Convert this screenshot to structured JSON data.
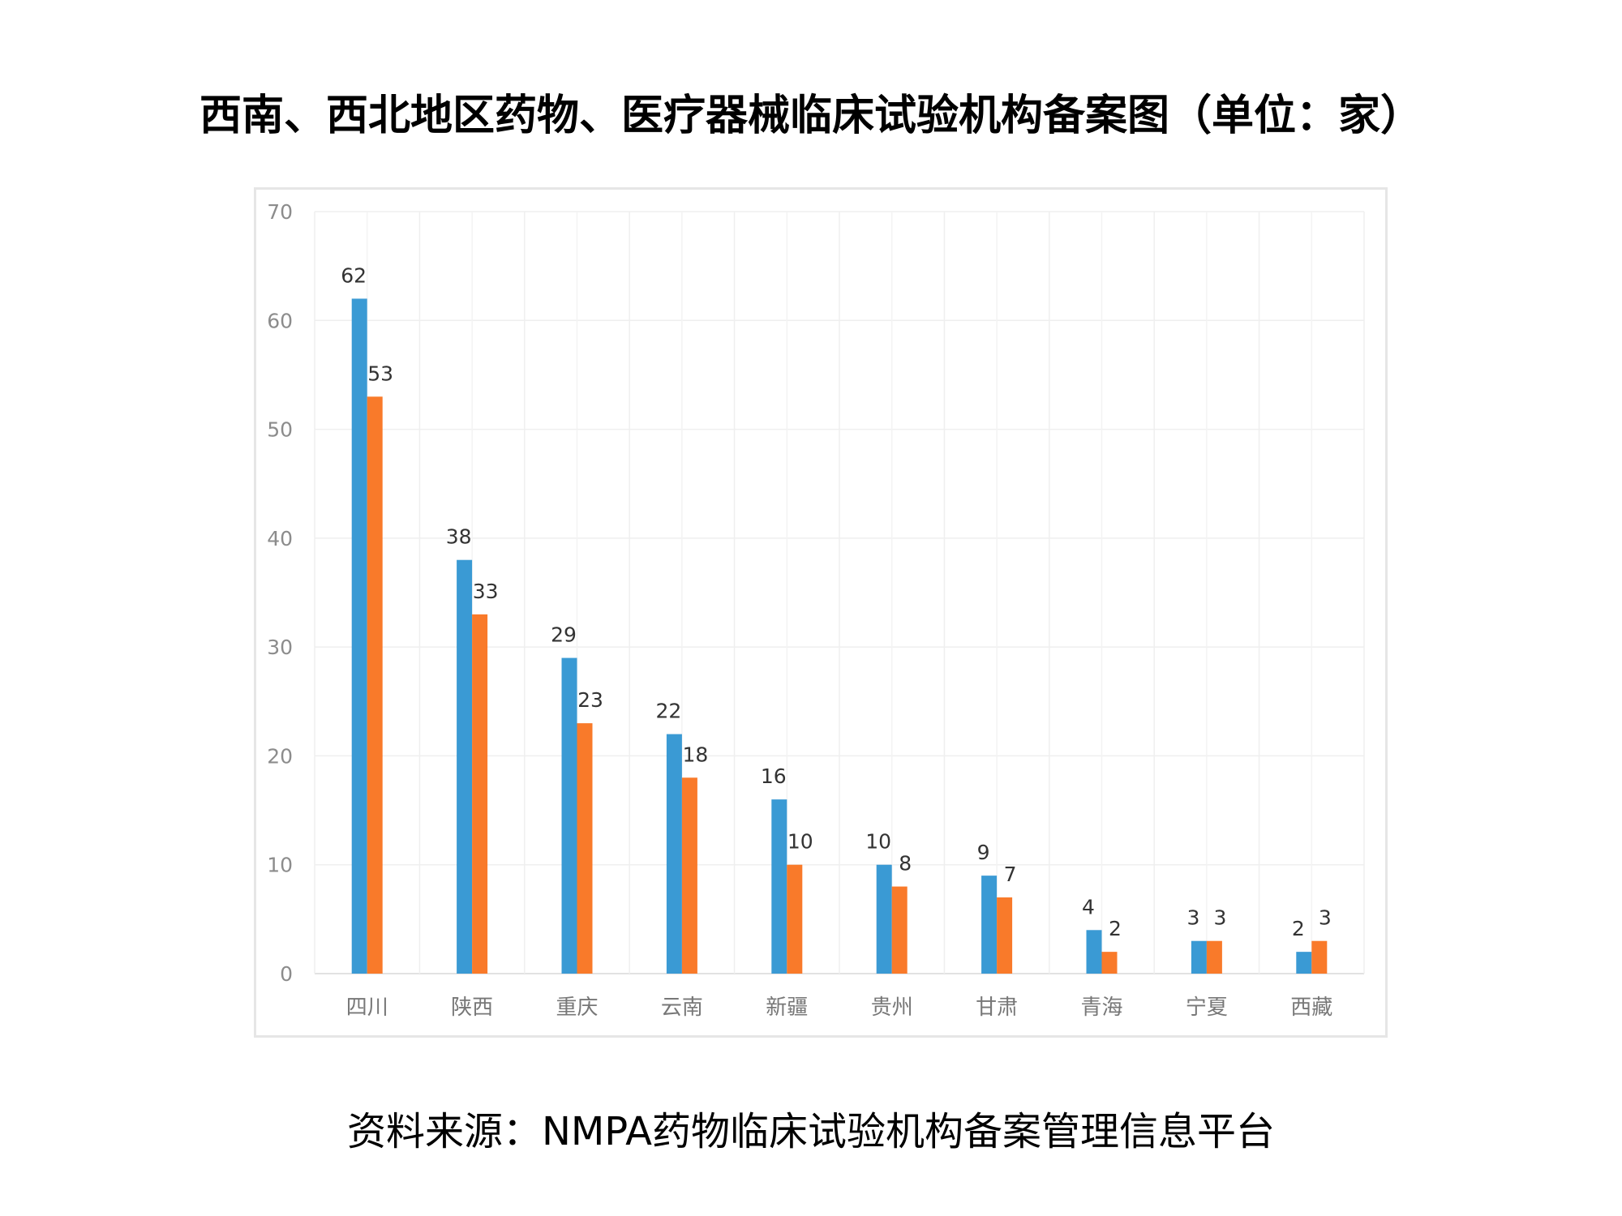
{
  "title": "西南、西北地区药物、医疗器械临床试验机构备案图（单位：家）",
  "source": "资料来源：NMPA药物临床试验机构备案管理信息平台",
  "chart_data": {
    "type": "bar",
    "title": "",
    "categories": [
      "四川",
      "陕西",
      "重庆",
      "云南",
      "新疆",
      "贵州",
      "甘肃",
      "青海",
      "宁夏",
      "西藏"
    ],
    "series": [
      {
        "values": [
          62,
          38,
          29,
          22,
          16,
          10,
          9,
          4,
          3,
          2
        ],
        "color": "#3a9ad4"
      },
      {
        "values": [
          53,
          33,
          23,
          18,
          10,
          8,
          7,
          2,
          3,
          3
        ],
        "color": "#f97a2a"
      }
    ],
    "ylim": [
      0,
      70
    ],
    "yticks": [
      0,
      10,
      20,
      30,
      40,
      50,
      60,
      70
    ],
    "grid": true,
    "legend": "none",
    "xlabel": "",
    "ylabel": ""
  }
}
